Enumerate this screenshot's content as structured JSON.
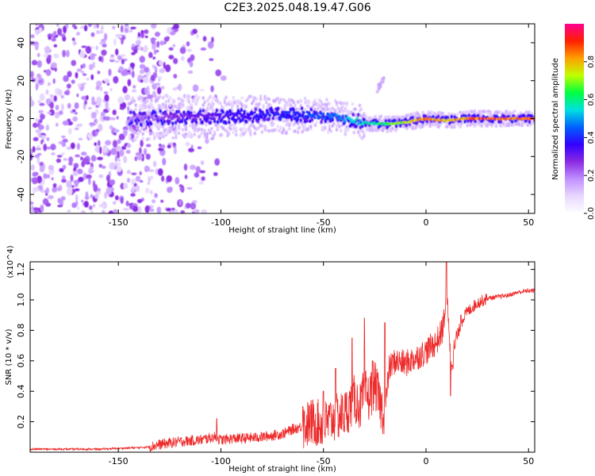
{
  "title": "C2E3.2025.048.19.47.G06",
  "chart_data": [
    {
      "type": "heatmap",
      "xlabel": "Height of straight line (km)",
      "ylabel": "Frequency (Hz)",
      "xlim": [
        -193,
        53
      ],
      "ylim": [
        -50,
        50
      ],
      "xticks": [
        -150,
        -100,
        -50,
        0,
        50
      ],
      "xtick_labels": [
        "-150",
        "-100",
        "-50",
        "0",
        "50"
      ],
      "yticks": [
        -40,
        -20,
        0,
        20,
        40
      ],
      "ytick_labels": [
        "-40",
        "-20",
        "0",
        "20",
        "40"
      ],
      "colorbar": {
        "label": "Normalized spectral amplitude",
        "range": [
          0,
          1
        ],
        "ticks": [
          0.0,
          0.2,
          0.4,
          0.6,
          0.8
        ],
        "tick_labels": [
          "0.0",
          "0.2",
          "0.4",
          "0.6",
          "0.8"
        ],
        "colors": [
          "#ffffff",
          "#e8d8ff",
          "#c090ff",
          "#8a2be2",
          "#3300ff",
          "#0060ff",
          "#00e0e0",
          "#00ff40",
          "#c0ff00",
          "#ffa000",
          "#ff2000",
          "#ff0090"
        ]
      },
      "ridge": {
        "height_km": [
          -145,
          -120,
          -100,
          -80,
          -60,
          -45,
          -30,
          -20,
          -10,
          0,
          10,
          20,
          30,
          40,
          53
        ],
        "center_frequency_hz": [
          0,
          1,
          1,
          2,
          2,
          1,
          -2,
          -3,
          -2,
          0,
          -1,
          0,
          0,
          0,
          0
        ],
        "peak_amplitude": [
          0.2,
          0.3,
          0.35,
          0.4,
          0.45,
          0.5,
          0.6,
          0.7,
          0.8,
          0.9,
          0.85,
          0.9,
          0.95,
          0.9,
          0.95
        ]
      },
      "noise_region_km": [
        -193,
        -140
      ],
      "branch": {
        "height_km": [
          -24,
          -20
        ],
        "frequency_hz": [
          15,
          22
        ]
      }
    },
    {
      "type": "line",
      "xlabel": "Height of straight line (km)",
      "ylabel": "SNR (10 * v/v)",
      "y_multiplier": "(x10^4)",
      "xlim": [
        -193,
        53
      ],
      "ylim": [
        0,
        1.25
      ],
      "xticks": [
        -150,
        -100,
        -50,
        0,
        50
      ],
      "xtick_labels": [
        "-150",
        "-100",
        "-50",
        "0",
        "50"
      ],
      "yticks": [
        0.2,
        0.4,
        0.6,
        0.8,
        1.0,
        1.2
      ],
      "ytick_labels": [
        "0.2",
        "0.4",
        "0.6",
        "0.8",
        "1.0",
        "1.2"
      ],
      "series": [
        {
          "name": "SNR",
          "color": "#ee2a2a",
          "x": [
            -193,
            -180,
            -170,
            -160,
            -150,
            -140,
            -135,
            -130,
            -120,
            -110,
            -103,
            -100,
            -95,
            -90,
            -80,
            -70,
            -65,
            -60,
            -55,
            -50,
            -45,
            -40,
            -37,
            -35,
            -32,
            -30,
            -28,
            -25,
            -22,
            -20,
            -18,
            -15,
            -10,
            -5,
            0,
            3,
            5,
            8,
            10,
            11,
            12,
            13,
            15,
            18,
            20,
            25,
            30,
            35,
            40,
            45,
            50,
            53
          ],
          "y": [
            0.02,
            0.02,
            0.02,
            0.02,
            0.025,
            0.03,
            0.035,
            0.05,
            0.07,
            0.08,
            0.1,
            0.08,
            0.09,
            0.09,
            0.1,
            0.12,
            0.15,
            0.17,
            0.2,
            0.18,
            0.22,
            0.25,
            0.3,
            0.35,
            0.3,
            0.4,
            0.35,
            0.45,
            0.3,
            0.25,
            0.55,
            0.6,
            0.58,
            0.62,
            0.66,
            0.7,
            0.72,
            0.8,
            1.0,
            0.9,
            0.6,
            0.62,
            0.75,
            0.88,
            0.92,
            0.98,
            1.01,
            1.02,
            1.03,
            1.05,
            1.06,
            1.06
          ],
          "spikes": [
            {
              "x": -102,
              "y": 0.22
            },
            {
              "x": -60,
              "y": 0.3
            },
            {
              "x": -50,
              "y": 0.4
            },
            {
              "x": -44,
              "y": 0.55
            },
            {
              "x": -36,
              "y": 0.75
            },
            {
              "x": -30,
              "y": 0.88
            },
            {
              "x": -26,
              "y": 0.6
            },
            {
              "x": -20,
              "y": 0.85
            },
            {
              "x": 10,
              "y": 1.25
            },
            {
              "x": 12,
              "y": 0.37
            },
            {
              "x": 17,
              "y": 0.9
            }
          ]
        }
      ]
    }
  ]
}
